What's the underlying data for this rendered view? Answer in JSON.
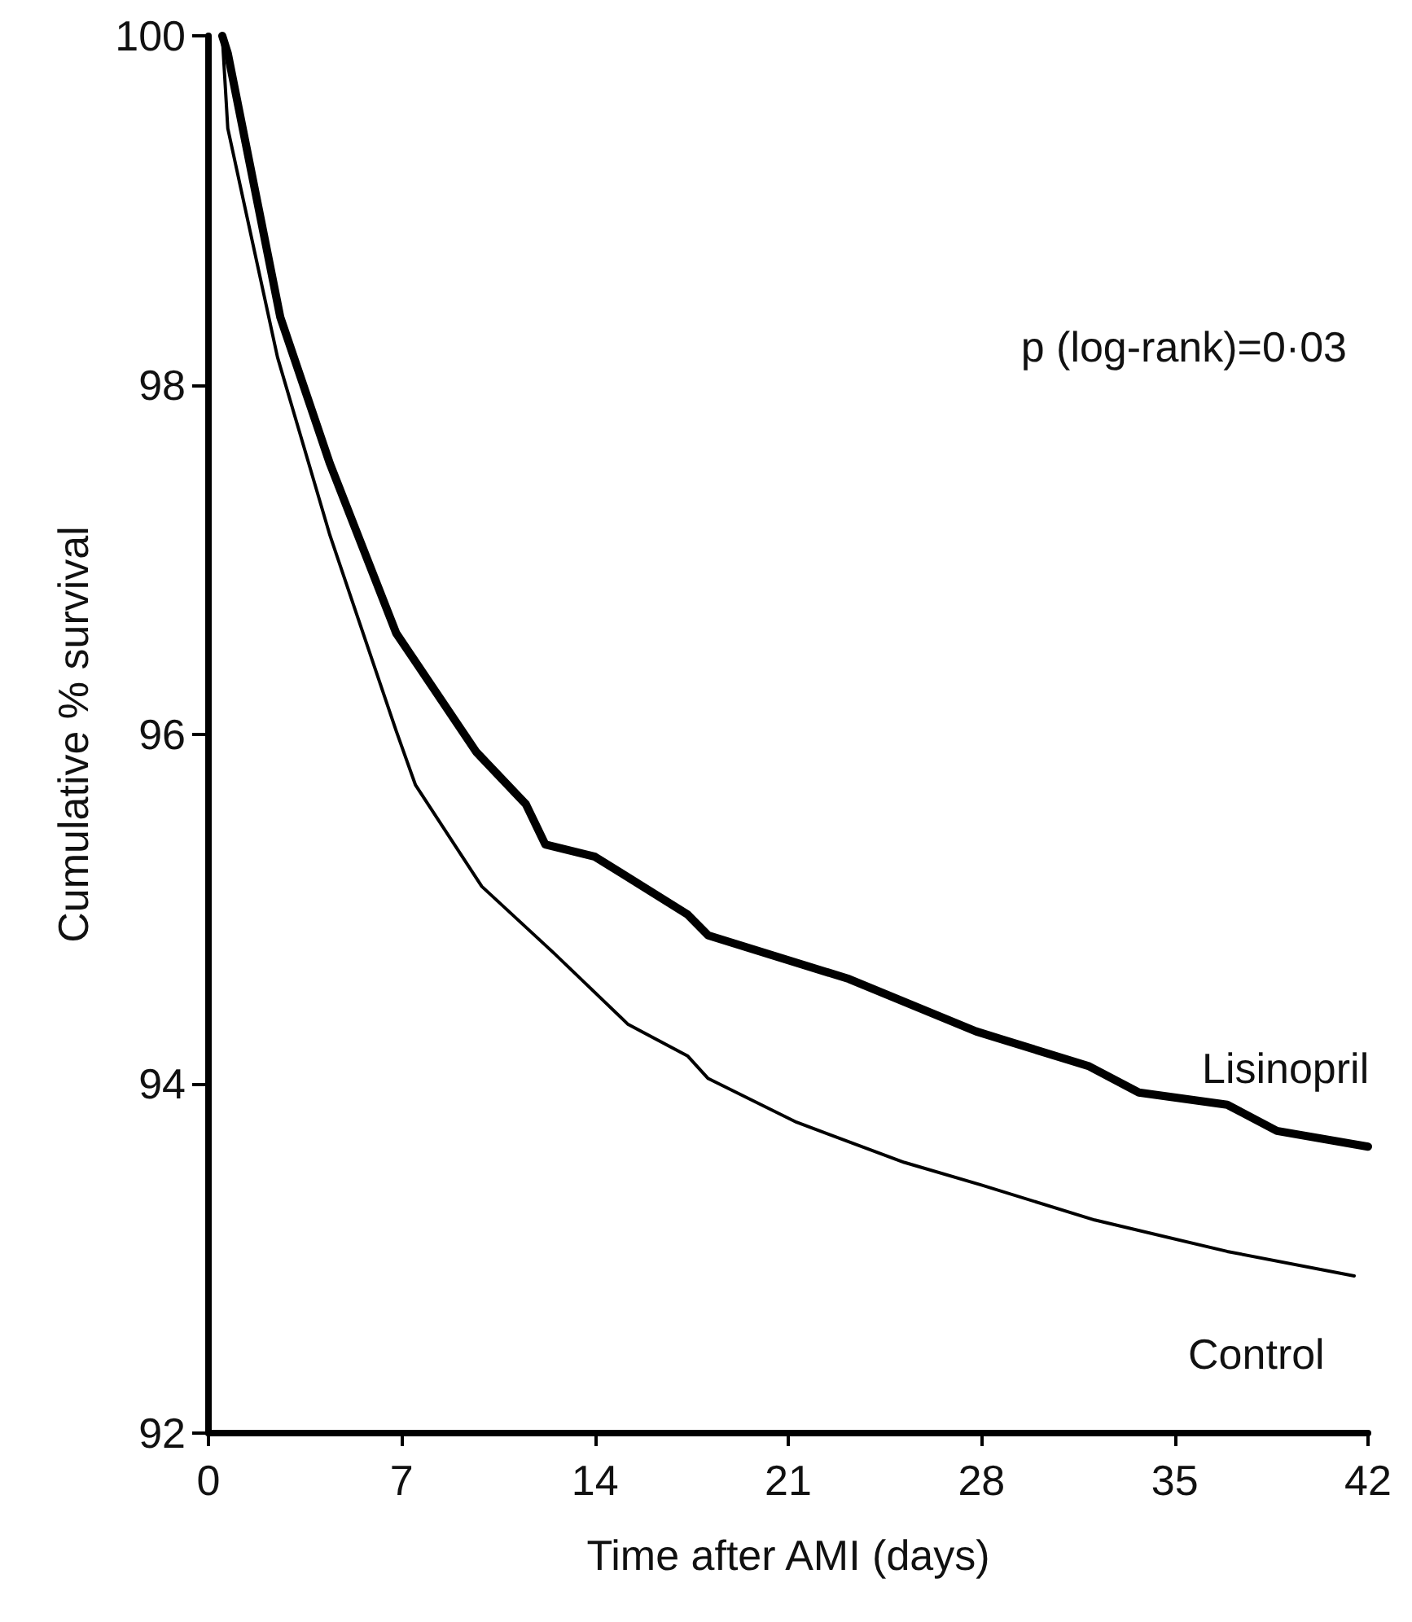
{
  "chart_data": {
    "type": "line",
    "xlabel": "Time after AMI (days)",
    "ylabel": "Cumulative % survival",
    "xlim": [
      0,
      42
    ],
    "xticks": [
      0,
      7,
      14,
      21,
      28,
      35,
      42
    ],
    "ylim": [
      92,
      100
    ],
    "yticks": [
      92,
      94,
      96,
      98,
      100
    ],
    "grid": false,
    "legend": false,
    "marker": "none",
    "annotations": [
      "p (log-rank)=0·03"
    ],
    "series": [
      {
        "name": "Lisinopril",
        "color": "#000000",
        "x": [
          0.5,
          0.7,
          2.6,
          4.4,
          6.8,
          9.7,
          11.5,
          12.2,
          14,
          17.35,
          18.1,
          23.2,
          27.8,
          31.9,
          33.7,
          36.9,
          38.7,
          42
        ],
        "values": [
          100,
          99.9,
          98.39,
          97.55,
          96.58,
          95.9,
          95.6,
          95.37,
          95.3,
          94.97,
          94.85,
          94.6,
          94.3,
          94.1,
          93.95,
          93.88,
          93.73,
          93.64
        ]
      },
      {
        "name": "Control",
        "color": "#000000",
        "x": [
          0.5,
          0.7,
          2.5,
          4.4,
          6.8,
          7.5,
          9.9,
          12.5,
          15.2,
          17.35,
          18.1,
          21.3,
          25.2,
          28,
          32.1,
          36.9,
          41.5
        ],
        "values": [
          100,
          99.47,
          98.16,
          97.14,
          96.02,
          95.71,
          95.13,
          94.75,
          94.34,
          94.16,
          94.03,
          93.78,
          93.55,
          93.42,
          93.22,
          93.04,
          92.9
        ]
      }
    ]
  }
}
